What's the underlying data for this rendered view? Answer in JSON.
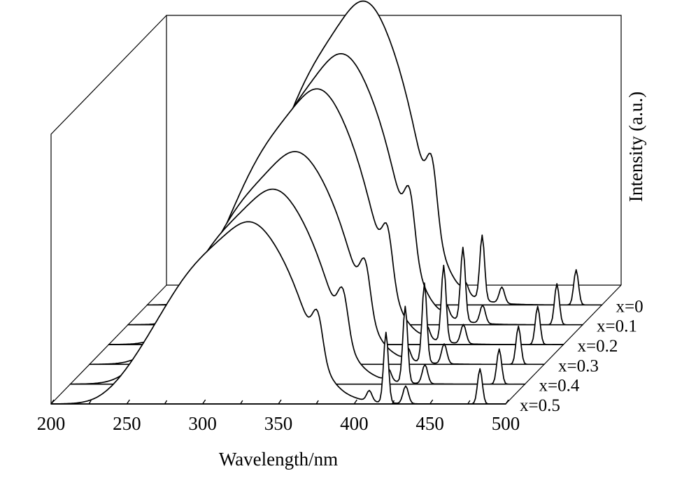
{
  "chart_data": {
    "type": "line",
    "style": "3d-waterfall",
    "xlabel": "Wavelength/nm",
    "zlabel": "Intensity (a.u.)",
    "xlim": [
      200,
      500
    ],
    "xticks": [
      200,
      250,
      300,
      350,
      400,
      450,
      500
    ],
    "grid": false,
    "series": [
      {
        "name": "x=0",
        "peaks": [
          {
            "x": 320,
            "h": 0.83,
            "w": 65
          },
          {
            "x": 350,
            "h": 0.37,
            "w": 30
          },
          {
            "x": 374,
            "h": 0.24,
            "w": 24
          },
          {
            "x": 388,
            "h": 0.19,
            "w": 6
          }
        ],
        "lines": [
          {
            "x": 421,
            "h": 0.22
          },
          {
            "x": 483,
            "h": 0.12
          }
        ]
      },
      {
        "name": "x=0.1",
        "peaks": [
          {
            "x": 318,
            "h": 0.74,
            "w": 65
          },
          {
            "x": 348,
            "h": 0.33,
            "w": 30
          },
          {
            "x": 372,
            "h": 0.22,
            "w": 24
          },
          {
            "x": 386,
            "h": 0.18,
            "w": 6
          }
        ],
        "lines": [
          {
            "x": 421,
            "h": 0.25
          },
          {
            "x": 483,
            "h": 0.14
          }
        ]
      },
      {
        "name": "x=0.2",
        "peaks": [
          {
            "x": 315,
            "h": 0.7,
            "w": 65
          },
          {
            "x": 345,
            "h": 0.31,
            "w": 30
          },
          {
            "x": 369,
            "h": 0.2,
            "w": 24
          },
          {
            "x": 384,
            "h": 0.16,
            "w": 6
          }
        ],
        "lines": [
          {
            "x": 421,
            "h": 0.26
          },
          {
            "x": 483,
            "h": 0.13
          }
        ]
      },
      {
        "name": "x=0.3",
        "peaks": [
          {
            "x": 313,
            "h": 0.58,
            "w": 65
          },
          {
            "x": 343,
            "h": 0.26,
            "w": 30
          },
          {
            "x": 367,
            "h": 0.17,
            "w": 24
          },
          {
            "x": 382,
            "h": 0.15,
            "w": 6
          }
        ],
        "lines": [
          {
            "x": 421,
            "h": 0.27
          },
          {
            "x": 483,
            "h": 0.13
          }
        ]
      },
      {
        "name": "x=0.4",
        "peaks": [
          {
            "x": 311,
            "h": 0.53,
            "w": 65
          },
          {
            "x": 341,
            "h": 0.24,
            "w": 30
          },
          {
            "x": 365,
            "h": 0.15,
            "w": 24
          },
          {
            "x": 380,
            "h": 0.14,
            "w": 6
          }
        ],
        "lines": [
          {
            "x": 421,
            "h": 0.26
          },
          {
            "x": 483,
            "h": 0.12
          }
        ]
      },
      {
        "name": "x=0.5",
        "peaks": [
          {
            "x": 308,
            "h": 0.5,
            "w": 65
          },
          {
            "x": 338,
            "h": 0.22,
            "w": 30
          },
          {
            "x": 362,
            "h": 0.14,
            "w": 24
          },
          {
            "x": 376,
            "h": 0.13,
            "w": 6
          }
        ],
        "lines": [
          {
            "x": 421,
            "h": 0.24
          },
          {
            "x": 483,
            "h": 0.12
          }
        ]
      }
    ]
  }
}
